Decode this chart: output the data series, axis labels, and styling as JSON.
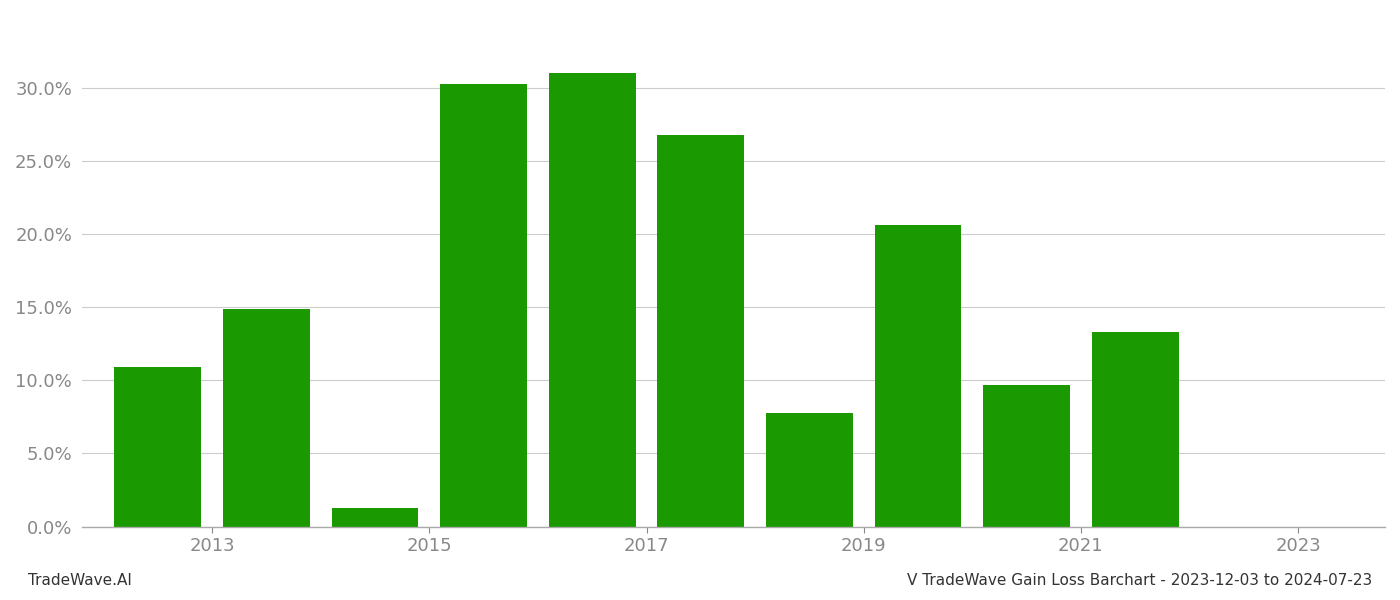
{
  "bar_positions": [
    2012.5,
    2013.5,
    2014.5,
    2015.5,
    2016.5,
    2017.5,
    2018.5,
    2019.5,
    2020.5,
    2021.5,
    2022.5
  ],
  "values": [
    0.109,
    0.149,
    0.013,
    0.303,
    0.31,
    0.268,
    0.078,
    0.206,
    0.097,
    0.133,
    0.0
  ],
  "bar_color": "#1a9900",
  "background_color": "#ffffff",
  "grid_color": "#cccccc",
  "axis_color": "#888888",
  "ylim": [
    0.0,
    0.35
  ],
  "yticks": [
    0.0,
    0.05,
    0.1,
    0.15,
    0.2,
    0.25,
    0.3
  ],
  "xtick_positions": [
    2013,
    2015,
    2017,
    2019,
    2021,
    2023
  ],
  "xtick_labels": [
    "2013",
    "2015",
    "2017",
    "2019",
    "2021",
    "2023"
  ],
  "footer_left": "TradeWave.AI",
  "footer_right": "V TradeWave Gain Loss Barchart - 2023-12-03 to 2024-07-23",
  "footer_fontsize": 11,
  "tick_fontsize": 13,
  "bar_width": 0.8,
  "spine_color": "#aaaaaa",
  "xlim": [
    2011.8,
    2023.8
  ]
}
